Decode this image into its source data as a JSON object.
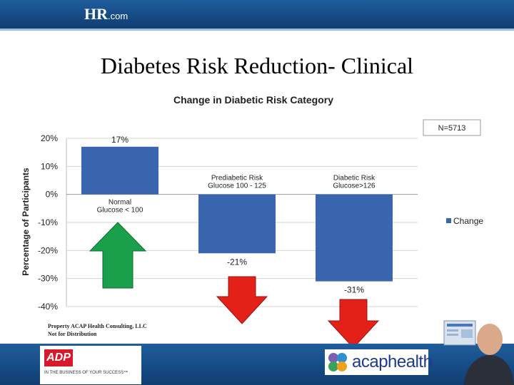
{
  "header": {
    "brand": "HR",
    "brand_suffix": ".com"
  },
  "slide": {
    "title": "Diabetes Risk Reduction- Clinical"
  },
  "chart_data": {
    "type": "bar",
    "title": "Change in Diabetic Risk Category",
    "ylabel": "Percentage of Participants",
    "xlabel": "",
    "ylim": [
      -40,
      20
    ],
    "yticks": [
      20,
      10,
      0,
      -10,
      -20,
      -30,
      -40
    ],
    "ytick_labels": [
      "20%",
      "10%",
      "0%",
      "-10%",
      "-20%",
      "-30%",
      "-40%"
    ],
    "categories": [
      "Normal Glucose < 100",
      "Prediabetic Risk Glucose 100 - 125",
      "Diabetic Risk Glucose>126"
    ],
    "category_label_lines": [
      [
        "Normal",
        "Glucose < 100"
      ],
      [
        "Prediabetic Risk",
        "Glucose 100 - 125"
      ],
      [
        "Diabetic Risk",
        "Glucose>126"
      ]
    ],
    "series": [
      {
        "name": "Change",
        "values": [
          17,
          -21,
          -31
        ],
        "color": "#3a66b0"
      }
    ],
    "data_labels": [
      "17%",
      "-21%",
      "-31%"
    ],
    "annotation": "N=5713",
    "legend": "right"
  },
  "arrows": [
    {
      "direction": "up",
      "color": "#1aa04a"
    },
    {
      "direction": "down",
      "color": "#e32119"
    },
    {
      "direction": "down",
      "color": "#e32119"
    }
  ],
  "footnote": {
    "line1": "Property ACAP Health Consulting, LLC",
    "line2": "Not for Distribution"
  },
  "footer": {
    "adp_logo": "ADP",
    "adp_tagline": "IN THE BUSINESS OF YOUR SUCCESS™",
    "acap_logo": "acaphealth"
  },
  "colors": {
    "header_blue": "#1f5d9c",
    "bar_blue": "#3a66b0"
  }
}
